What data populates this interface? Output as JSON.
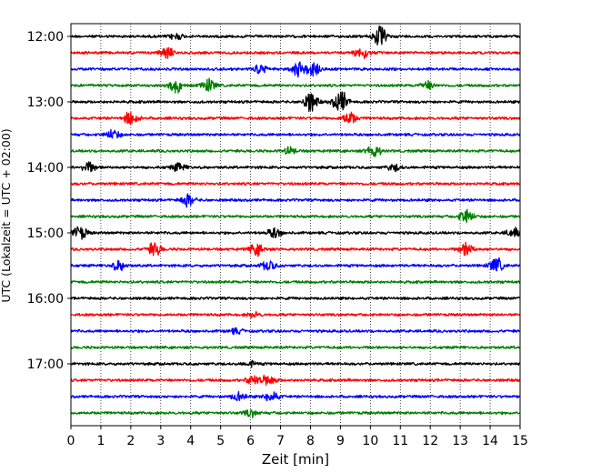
{
  "chart_data": {
    "type": "line",
    "title": "",
    "xlabel": "Zeit  [min]",
    "ylabel": "UTC (Lokalzeit = UTC + 02:00)",
    "xlim": [
      0,
      15
    ],
    "x_ticks": [
      "0",
      "1",
      "2",
      "3",
      "4",
      "5",
      "6",
      "7",
      "8",
      "9",
      "10",
      "11",
      "12",
      "13",
      "14",
      "15"
    ],
    "y_ticks": [
      "12:00",
      "13:00",
      "14:00",
      "15:00",
      "16:00",
      "17:00"
    ],
    "grid": "vertical dotted",
    "trace_interval_minutes": 15,
    "trace_start": "12:00",
    "color_cycle": [
      "#000000",
      "#ff0000",
      "#0000ff",
      "#008000"
    ],
    "series": [
      {
        "start": "12:00",
        "color": "#000000",
        "events": [
          {
            "t": 10.3,
            "amp": 12
          },
          {
            "t": 3.5,
            "amp": 4
          }
        ]
      },
      {
        "start": "12:15",
        "color": "#ff0000",
        "events": [
          {
            "t": 3.2,
            "amp": 6
          },
          {
            "t": 9.7,
            "amp": 9
          }
        ]
      },
      {
        "start": "12:30",
        "color": "#0000ff",
        "events": [
          {
            "t": 6.3,
            "amp": 6
          },
          {
            "t": 7.6,
            "amp": 9
          },
          {
            "t": 8.1,
            "amp": 9
          }
        ]
      },
      {
        "start": "12:45",
        "color": "#008000",
        "events": [
          {
            "t": 3.5,
            "amp": 8
          },
          {
            "t": 4.6,
            "amp": 8
          },
          {
            "t": 11.9,
            "amp": 5
          }
        ]
      },
      {
        "start": "13:00",
        "color": "#000000",
        "events": [
          {
            "t": 8.0,
            "amp": 12
          },
          {
            "t": 9.0,
            "amp": 14
          }
        ]
      },
      {
        "start": "13:15",
        "color": "#ff0000",
        "events": [
          {
            "t": 2.0,
            "amp": 8
          },
          {
            "t": 9.3,
            "amp": 8
          }
        ]
      },
      {
        "start": "13:30",
        "color": "#0000ff",
        "events": [
          {
            "t": 1.4,
            "amp": 6
          }
        ]
      },
      {
        "start": "13:45",
        "color": "#008000",
        "events": [
          {
            "t": 10.1,
            "amp": 8
          },
          {
            "t": 7.3,
            "amp": 4
          }
        ]
      },
      {
        "start": "14:00",
        "color": "#000000",
        "events": [
          {
            "t": 0.6,
            "amp": 6
          },
          {
            "t": 3.6,
            "amp": 5
          },
          {
            "t": 10.8,
            "amp": 4
          }
        ]
      },
      {
        "start": "14:15",
        "color": "#ff0000",
        "events": []
      },
      {
        "start": "14:30",
        "color": "#0000ff",
        "events": [
          {
            "t": 3.9,
            "amp": 7
          }
        ]
      },
      {
        "start": "14:45",
        "color": "#008000",
        "events": [
          {
            "t": 13.2,
            "amp": 9
          }
        ]
      },
      {
        "start": "15:00",
        "color": "#000000",
        "events": [
          {
            "t": 0.3,
            "amp": 8
          },
          {
            "t": 6.8,
            "amp": 6
          },
          {
            "t": 14.8,
            "amp": 6
          }
        ]
      },
      {
        "start": "15:15",
        "color": "#ff0000",
        "events": [
          {
            "t": 2.8,
            "amp": 8
          },
          {
            "t": 6.2,
            "amp": 7
          },
          {
            "t": 13.2,
            "amp": 8
          }
        ]
      },
      {
        "start": "15:30",
        "color": "#0000ff",
        "events": [
          {
            "t": 1.6,
            "amp": 6
          },
          {
            "t": 6.6,
            "amp": 6
          },
          {
            "t": 14.2,
            "amp": 9
          }
        ]
      },
      {
        "start": "15:45",
        "color": "#008000",
        "events": []
      },
      {
        "start": "16:00",
        "color": "#000000",
        "events": []
      },
      {
        "start": "16:15",
        "color": "#ff0000",
        "events": [
          {
            "t": 6.1,
            "amp": 3
          }
        ]
      },
      {
        "start": "16:30",
        "color": "#0000ff",
        "events": [
          {
            "t": 5.5,
            "amp": 3
          }
        ]
      },
      {
        "start": "16:45",
        "color": "#008000",
        "events": []
      },
      {
        "start": "17:00",
        "color": "#000000",
        "events": [
          {
            "t": 6.0,
            "amp": 3
          }
        ]
      },
      {
        "start": "17:15",
        "color": "#ff0000",
        "events": [
          {
            "t": 6.1,
            "amp": 6
          },
          {
            "t": 6.6,
            "amp": 6
          }
        ]
      },
      {
        "start": "17:30",
        "color": "#0000ff",
        "events": [
          {
            "t": 5.6,
            "amp": 5
          },
          {
            "t": 6.7,
            "amp": 7
          }
        ]
      },
      {
        "start": "17:45",
        "color": "#008000",
        "events": [
          {
            "t": 6.0,
            "amp": 4
          }
        ]
      }
    ]
  }
}
